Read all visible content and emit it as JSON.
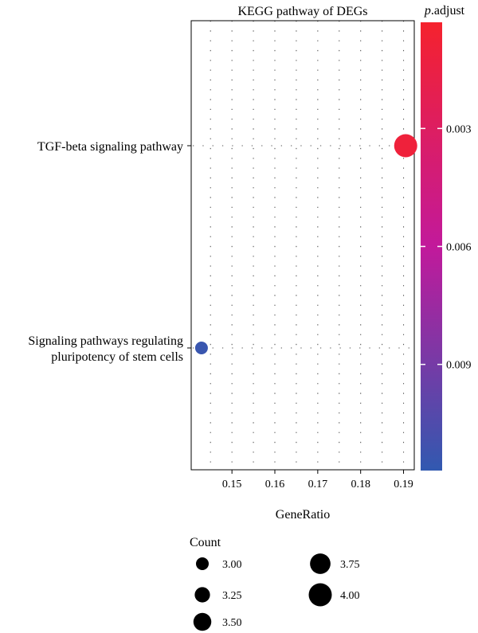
{
  "chart_data": {
    "type": "scatter",
    "title": "KEGG pathway of DEGs",
    "xlabel": "GeneRatio",
    "ylabel": "",
    "xlim": [
      0.1405,
      0.1925
    ],
    "x_ticks": [
      0.15,
      0.16,
      0.17,
      0.18,
      0.19
    ],
    "x_tick_labels": [
      "0.15",
      "0.16",
      "0.17",
      "0.18",
      "0.19"
    ],
    "categories": [
      "TGF-beta signaling pathway",
      "Signaling pathways regulating\npluripotency of stem cells"
    ],
    "points": [
      {
        "category": "TGF-beta signaling pathway",
        "x": 0.1905,
        "count": 4,
        "p_adjust": 0.001
      },
      {
        "category": "Signaling pathways regulating\npluripotency of stem cells",
        "x": 0.1429,
        "count": 3,
        "p_adjust": 0.0114
      }
    ],
    "grid": true,
    "colorbar": {
      "title_italic": "p",
      "title_rest": ".adjust",
      "range": [
        0.0003,
        0.0117
      ],
      "ticks": [
        0.003,
        0.006,
        0.009
      ],
      "tick_labels": [
        "0.003",
        "0.006",
        "0.009"
      ],
      "color_low_value": "#f5222d",
      "color_mid": "#c2199b",
      "color_high_value": "#3159b0",
      "placement": "right"
    },
    "size_legend": {
      "title": "Count",
      "entries": [
        {
          "value": 3.0,
          "label": "3.00"
        },
        {
          "value": 3.25,
          "label": "3.25"
        },
        {
          "value": 3.5,
          "label": "3.50"
        },
        {
          "value": 3.75,
          "label": "3.75"
        },
        {
          "value": 4.0,
          "label": "4.00"
        }
      ],
      "placement": "bottom"
    }
  }
}
